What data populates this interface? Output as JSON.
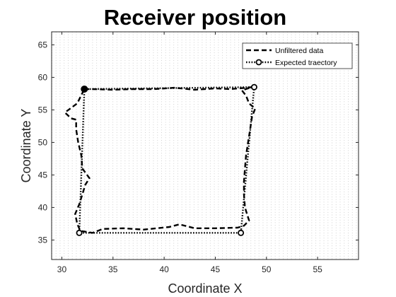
{
  "chart_data": {
    "type": "line",
    "title": "Receiver position",
    "xlabel": "Coordinate X",
    "ylabel": "Coordinate Y",
    "xlim": [
      29,
      59
    ],
    "ylim": [
      32,
      67
    ],
    "xticks": [
      30,
      35,
      40,
      45,
      50,
      55
    ],
    "yticks": [
      35,
      40,
      45,
      50,
      55,
      60,
      65
    ],
    "grid": "minor dotted",
    "legend_position": "top-right",
    "series": [
      {
        "name": "Unfiltered data",
        "style": "dashed",
        "color": "#000000",
        "points": [
          [
            32.2,
            58.2
          ],
          [
            33.0,
            58.2
          ],
          [
            35.0,
            58.1
          ],
          [
            37.0,
            58.2
          ],
          [
            39.0,
            58.2
          ],
          [
            41.0,
            58.4
          ],
          [
            43.0,
            58.1
          ],
          [
            45.0,
            58.3
          ],
          [
            46.5,
            58.2
          ],
          [
            48.0,
            58.4
          ],
          [
            48.6,
            58.5
          ],
          [
            47.6,
            58.0
          ],
          [
            48.0,
            57.2
          ],
          [
            48.3,
            56.0
          ],
          [
            48.9,
            55.2
          ],
          [
            48.6,
            54.0
          ],
          [
            48.4,
            52.0
          ],
          [
            48.2,
            50.0
          ],
          [
            48.0,
            48.0
          ],
          [
            47.9,
            46.0
          ],
          [
            47.8,
            44.0
          ],
          [
            47.8,
            42.0
          ],
          [
            47.9,
            40.0
          ],
          [
            48.3,
            38.0
          ],
          [
            47.8,
            37.2
          ],
          [
            47.2,
            36.9
          ],
          [
            45.0,
            36.8
          ],
          [
            43.0,
            36.8
          ],
          [
            41.5,
            37.4
          ],
          [
            40.5,
            37.0
          ],
          [
            38.0,
            36.6
          ],
          [
            36.0,
            36.8
          ],
          [
            34.0,
            36.7
          ],
          [
            33.0,
            36.1
          ],
          [
            31.8,
            36.4
          ],
          [
            31.5,
            37.5
          ],
          [
            31.3,
            39.0
          ],
          [
            31.7,
            40.5
          ],
          [
            32.0,
            42.0
          ],
          [
            32.3,
            43.5
          ],
          [
            32.7,
            44.5
          ],
          [
            32.0,
            46.0
          ],
          [
            31.9,
            48.0
          ],
          [
            31.6,
            50.0
          ],
          [
            31.4,
            52.0
          ],
          [
            31.4,
            53.5
          ],
          [
            30.9,
            53.7
          ],
          [
            30.3,
            54.6
          ],
          [
            31.5,
            56.0
          ],
          [
            32.2,
            58.2
          ]
        ]
      },
      {
        "name": "Expected traectory",
        "style": "dotted",
        "color": "#000000",
        "markers": "circle",
        "points": [
          [
            32.2,
            58.2
          ],
          [
            48.8,
            58.5
          ],
          [
            47.5,
            36.1
          ],
          [
            31.7,
            36.1
          ],
          [
            32.2,
            58.2
          ]
        ]
      }
    ]
  }
}
